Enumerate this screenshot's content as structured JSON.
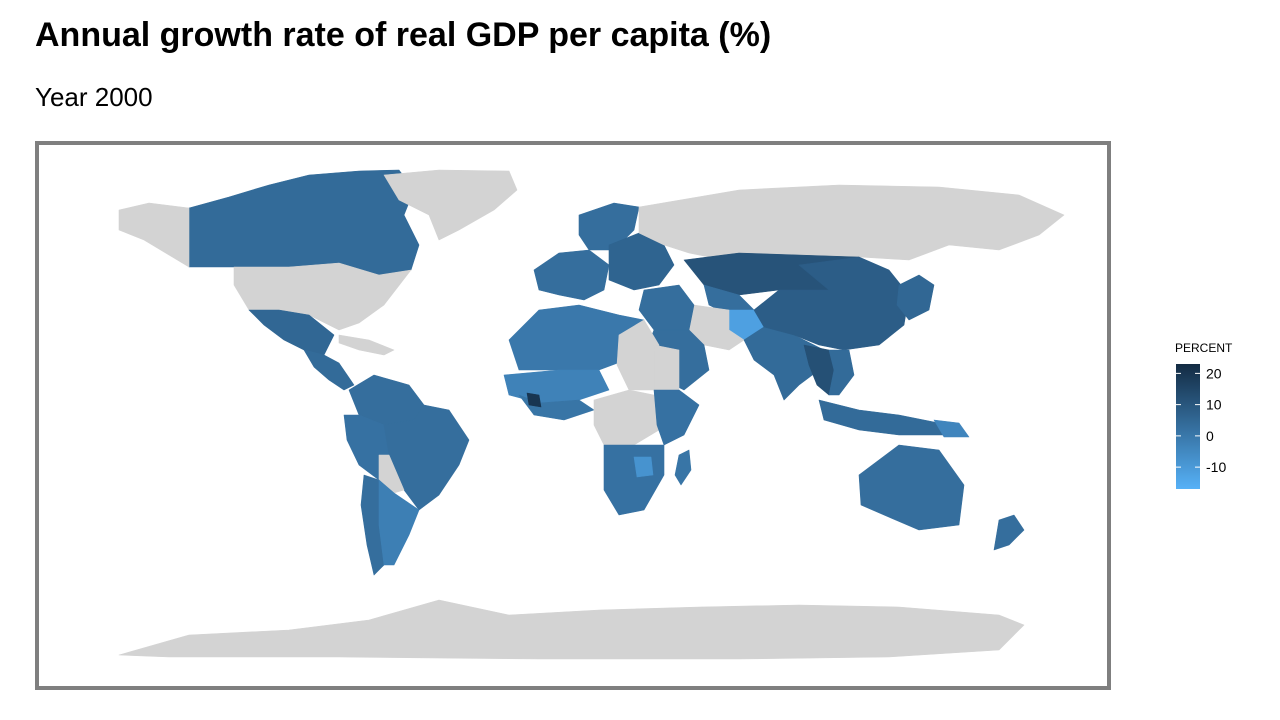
{
  "title": "Annual growth rate of real GDP per capita (%)",
  "subtitle": "Year 2000",
  "legend": {
    "title": "PERCENT",
    "ticks": [
      "20",
      "10",
      "0",
      "-10"
    ],
    "tick_values": [
      20,
      10,
      0,
      -10
    ],
    "range": [
      -17,
      23
    ],
    "color_low": "#56b1f7",
    "color_high": "#132b43"
  },
  "colors": {
    "no_data": "#d3d3d3",
    "frame": "#7f7f7f"
  },
  "map": {
    "type": "choropleth",
    "variable": "PERCENT",
    "regions": [
      {
        "name": "Canada",
        "value": 4
      },
      {
        "name": "Greenland",
        "value": null
      },
      {
        "name": "Alaska",
        "value": null
      },
      {
        "name": "United States",
        "value": null
      },
      {
        "name": "Mexico",
        "value": 5
      },
      {
        "name": "Central America",
        "value": 4
      },
      {
        "name": "Caribbean",
        "value": null
      },
      {
        "name": "Colombia & Venezuela",
        "value": 3
      },
      {
        "name": "Peru & Ecuador",
        "value": 2
      },
      {
        "name": "Brazil",
        "value": 3
      },
      {
        "name": "Bolivia",
        "value": null
      },
      {
        "name": "Chile",
        "value": 3
      },
      {
        "name": "Argentina",
        "value": -2
      },
      {
        "name": "Western Europe",
        "value": 3
      },
      {
        "name": "Scandinavia",
        "value": 3
      },
      {
        "name": "Eastern Europe",
        "value": 6
      },
      {
        "name": "Russia",
        "value": null
      },
      {
        "name": "Kazakhstan & Mongolia",
        "value": 11
      },
      {
        "name": "Central Asia",
        "value": 3
      },
      {
        "name": "Afghanistan",
        "value": -12
      },
      {
        "name": "Iran",
        "value": null
      },
      {
        "name": "Turkey & Middle East",
        "value": 3
      },
      {
        "name": "Arabian Peninsula",
        "value": 3
      },
      {
        "name": "Pakistan & India",
        "value": 4
      },
      {
        "name": "China",
        "value": 8
      },
      {
        "name": "Myanmar & Thailand",
        "value": 12
      },
      {
        "name": "Southeast Asia",
        "value": 4
      },
      {
        "name": "Japan & Korea",
        "value": 5
      },
      {
        "name": "Indonesia",
        "value": 4
      },
      {
        "name": "Papua New Guinea",
        "value": -4
      },
      {
        "name": "Australia",
        "value": 3
      },
      {
        "name": "New Zealand",
        "value": 3
      },
      {
        "name": "North Africa",
        "value": 0
      },
      {
        "name": "Sahel",
        "value": -3
      },
      {
        "name": "Libya & Chad",
        "value": null
      },
      {
        "name": "Sudan",
        "value": null
      },
      {
        "name": "West Africa coast",
        "value": 1
      },
      {
        "name": "Liberia",
        "value": 20
      },
      {
        "name": "Central Africa",
        "value": null
      },
      {
        "name": "East Africa",
        "value": 2
      },
      {
        "name": "Southern Africa",
        "value": 2
      },
      {
        "name": "Zimbabwe",
        "value": -8
      },
      {
        "name": "Madagascar",
        "value": 1
      },
      {
        "name": "Antarctica",
        "value": null
      }
    ]
  }
}
